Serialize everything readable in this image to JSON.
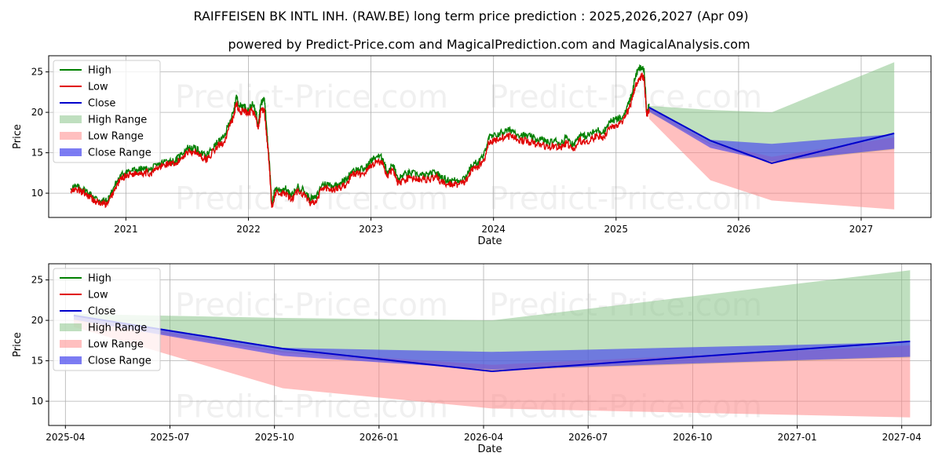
{
  "title": "RAIFFEISEN BK INTL INH. (RAW.BE) long term price prediction : 2025,2026,2027 (Apr 09)",
  "subtitle": "powered by Predict-Price.com and MagicalPrediction.com and MagicalAnalysis.com",
  "watermark": "Predict-Price.com",
  "colors": {
    "high": "#008000",
    "low": "#e00000",
    "close": "#0000cc",
    "high_range": "#7fbf7f",
    "low_range": "#ff8080",
    "close_range": "#4444ee",
    "grid": "#b0b0b0"
  },
  "chart_data": [
    {
      "type": "line",
      "panel": "top",
      "xlabel": "Date",
      "ylabel": "Price",
      "xlim": [
        2020.37,
        2027.57
      ],
      "ylim": [
        7,
        27
      ],
      "xticks": [
        {
          "v": 2021.0,
          "label": "2021"
        },
        {
          "v": 2022.0,
          "label": "2022"
        },
        {
          "v": 2023.0,
          "label": "2023"
        },
        {
          "v": 2024.0,
          "label": "2024"
        },
        {
          "v": 2025.0,
          "label": "2025"
        },
        {
          "v": 2026.0,
          "label": "2026"
        },
        {
          "v": 2027.0,
          "label": "2027"
        }
      ],
      "yticks": [
        10,
        15,
        20,
        25
      ],
      "legend": [
        "High",
        "Low",
        "Close",
        "High Range",
        "Low Range",
        "Close Range"
      ],
      "legend_position": "top-left",
      "history_low": [
        [
          2020.55,
          10.2
        ],
        [
          2020.6,
          10.4
        ],
        [
          2020.65,
          10.1
        ],
        [
          2020.7,
          9.6
        ],
        [
          2020.75,
          9.0
        ],
        [
          2020.8,
          8.7
        ],
        [
          2020.85,
          8.6
        ],
        [
          2020.9,
          10.2
        ],
        [
          2020.95,
          11.6
        ],
        [
          2021.0,
          12.2
        ],
        [
          2021.05,
          12.4
        ],
        [
          2021.1,
          12.5
        ],
        [
          2021.15,
          12.6
        ],
        [
          2021.2,
          12.4
        ],
        [
          2021.25,
          13.0
        ],
        [
          2021.3,
          13.4
        ],
        [
          2021.35,
          13.7
        ],
        [
          2021.4,
          13.4
        ],
        [
          2021.45,
          14.3
        ],
        [
          2021.5,
          15.1
        ],
        [
          2021.55,
          15.2
        ],
        [
          2021.6,
          14.8
        ],
        [
          2021.65,
          14.1
        ],
        [
          2021.7,
          14.9
        ],
        [
          2021.75,
          15.8
        ],
        [
          2021.8,
          16.3
        ],
        [
          2021.85,
          18.4
        ],
        [
          2021.88,
          19.4
        ],
        [
          2021.9,
          21.2
        ],
        [
          2021.93,
          20.0
        ],
        [
          2021.96,
          20.2
        ],
        [
          2022.0,
          19.7
        ],
        [
          2022.03,
          20.3
        ],
        [
          2022.06,
          19.5
        ],
        [
          2022.08,
          17.9
        ],
        [
          2022.1,
          20.2
        ],
        [
          2022.13,
          20.3
        ],
        [
          2022.15,
          17.0
        ],
        [
          2022.17,
          13.5
        ],
        [
          2022.19,
          8.2
        ],
        [
          2022.22,
          10.1
        ],
        [
          2022.26,
          9.8
        ],
        [
          2022.3,
          10.0
        ],
        [
          2022.35,
          9.1
        ],
        [
          2022.4,
          10.3
        ],
        [
          2022.45,
          9.9
        ],
        [
          2022.5,
          8.8
        ],
        [
          2022.55,
          8.8
        ],
        [
          2022.6,
          10.5
        ],
        [
          2022.65,
          10.6
        ],
        [
          2022.7,
          10.4
        ],
        [
          2022.75,
          10.7
        ],
        [
          2022.8,
          11.1
        ],
        [
          2022.85,
          12.4
        ],
        [
          2022.9,
          12.4
        ],
        [
          2022.95,
          12.5
        ],
        [
          2023.0,
          13.4
        ],
        [
          2023.05,
          14.0
        ],
        [
          2023.1,
          13.7
        ],
        [
          2023.13,
          12.0
        ],
        [
          2023.18,
          13.0
        ],
        [
          2023.22,
          11.1
        ],
        [
          2023.27,
          11.7
        ],
        [
          2023.32,
          11.9
        ],
        [
          2023.38,
          11.8
        ],
        [
          2023.43,
          11.7
        ],
        [
          2023.48,
          11.7
        ],
        [
          2023.53,
          12.0
        ],
        [
          2023.57,
          11.4
        ],
        [
          2023.62,
          11.1
        ],
        [
          2023.67,
          11.1
        ],
        [
          2023.72,
          11.1
        ],
        [
          2023.77,
          11.4
        ],
        [
          2023.82,
          12.8
        ],
        [
          2023.88,
          13.4
        ],
        [
          2023.92,
          14.0
        ],
        [
          2023.96,
          16.3
        ],
        [
          2024.0,
          16.4
        ],
        [
          2024.05,
          16.8
        ],
        [
          2024.1,
          17.0
        ],
        [
          2024.15,
          17.1
        ],
        [
          2024.2,
          16.6
        ],
        [
          2024.25,
          16.5
        ],
        [
          2024.3,
          16.3
        ],
        [
          2024.35,
          16.0
        ],
        [
          2024.4,
          16.0
        ],
        [
          2024.45,
          15.6
        ],
        [
          2024.5,
          15.9
        ],
        [
          2024.55,
          15.6
        ],
        [
          2024.6,
          16.3
        ],
        [
          2024.65,
          15.2
        ],
        [
          2024.7,
          16.5
        ],
        [
          2024.75,
          16.3
        ],
        [
          2024.8,
          16.7
        ],
        [
          2024.85,
          17.1
        ],
        [
          2024.9,
          16.9
        ],
        [
          2024.95,
          18.2
        ],
        [
          2025.0,
          18.4
        ],
        [
          2025.05,
          18.6
        ],
        [
          2025.1,
          20.3
        ],
        [
          2025.13,
          21.5
        ],
        [
          2025.16,
          23.5
        ],
        [
          2025.19,
          24.0
        ],
        [
          2025.21,
          24.6
        ],
        [
          2025.23,
          24.2
        ],
        [
          2025.25,
          19.5
        ],
        [
          2025.27,
          20.4
        ]
      ],
      "history_high": [
        [
          2020.55,
          10.6
        ],
        [
          2020.6,
          10.8
        ],
        [
          2020.65,
          10.5
        ],
        [
          2020.7,
          10.0
        ],
        [
          2020.75,
          9.4
        ],
        [
          2020.8,
          9.1
        ],
        [
          2020.85,
          9.0
        ],
        [
          2020.9,
          10.7
        ],
        [
          2020.95,
          12.0
        ],
        [
          2021.0,
          12.7
        ],
        [
          2021.05,
          12.8
        ],
        [
          2021.1,
          12.9
        ],
        [
          2021.15,
          13.0
        ],
        [
          2021.2,
          12.9
        ],
        [
          2021.25,
          13.4
        ],
        [
          2021.3,
          13.8
        ],
        [
          2021.35,
          14.1
        ],
        [
          2021.4,
          13.9
        ],
        [
          2021.45,
          14.8
        ],
        [
          2021.5,
          15.6
        ],
        [
          2021.55,
          15.6
        ],
        [
          2021.6,
          15.2
        ],
        [
          2021.65,
          14.6
        ],
        [
          2021.7,
          15.4
        ],
        [
          2021.75,
          16.3
        ],
        [
          2021.8,
          16.9
        ],
        [
          2021.85,
          19.0
        ],
        [
          2021.88,
          20.0
        ],
        [
          2021.9,
          22.0
        ],
        [
          2021.93,
          20.8
        ],
        [
          2021.96,
          20.8
        ],
        [
          2022.0,
          20.3
        ],
        [
          2022.03,
          21.0
        ],
        [
          2022.06,
          20.2
        ],
        [
          2022.08,
          18.6
        ],
        [
          2022.1,
          21.0
        ],
        [
          2022.13,
          21.8
        ],
        [
          2022.15,
          18.0
        ],
        [
          2022.17,
          14.0
        ],
        [
          2022.19,
          8.8
        ],
        [
          2022.22,
          10.6
        ],
        [
          2022.26,
          10.4
        ],
        [
          2022.3,
          10.6
        ],
        [
          2022.35,
          9.6
        ],
        [
          2022.4,
          10.8
        ],
        [
          2022.45,
          10.4
        ],
        [
          2022.5,
          9.3
        ],
        [
          2022.55,
          9.4
        ],
        [
          2022.6,
          11.1
        ],
        [
          2022.65,
          11.1
        ],
        [
          2022.7,
          10.9
        ],
        [
          2022.75,
          11.3
        ],
        [
          2022.8,
          11.7
        ],
        [
          2022.85,
          12.9
        ],
        [
          2022.9,
          12.9
        ],
        [
          2022.95,
          13.0
        ],
        [
          2023.0,
          14.0
        ],
        [
          2023.05,
          14.6
        ],
        [
          2023.1,
          14.3
        ],
        [
          2023.13,
          12.6
        ],
        [
          2023.18,
          13.6
        ],
        [
          2023.22,
          11.7
        ],
        [
          2023.27,
          12.3
        ],
        [
          2023.32,
          12.5
        ],
        [
          2023.38,
          12.3
        ],
        [
          2023.43,
          12.2
        ],
        [
          2023.48,
          12.3
        ],
        [
          2023.53,
          12.6
        ],
        [
          2023.57,
          12.0
        ],
        [
          2023.62,
          11.6
        ],
        [
          2023.67,
          11.6
        ],
        [
          2023.72,
          11.6
        ],
        [
          2023.77,
          12.0
        ],
        [
          2023.82,
          13.3
        ],
        [
          2023.88,
          14.0
        ],
        [
          2023.92,
          14.6
        ],
        [
          2023.96,
          16.9
        ],
        [
          2024.0,
          17.0
        ],
        [
          2024.05,
          17.4
        ],
        [
          2024.1,
          17.7
        ],
        [
          2024.15,
          17.8
        ],
        [
          2024.2,
          17.3
        ],
        [
          2024.25,
          17.1
        ],
        [
          2024.3,
          17.0
        ],
        [
          2024.35,
          16.6
        ],
        [
          2024.4,
          16.6
        ],
        [
          2024.45,
          16.2
        ],
        [
          2024.5,
          16.5
        ],
        [
          2024.55,
          16.2
        ],
        [
          2024.6,
          17.0
        ],
        [
          2024.65,
          15.9
        ],
        [
          2024.7,
          17.2
        ],
        [
          2024.75,
          17.0
        ],
        [
          2024.8,
          17.4
        ],
        [
          2024.85,
          17.8
        ],
        [
          2024.9,
          17.6
        ],
        [
          2024.95,
          18.9
        ],
        [
          2025.0,
          19.1
        ],
        [
          2025.05,
          19.3
        ],
        [
          2025.1,
          21.0
        ],
        [
          2025.13,
          22.3
        ],
        [
          2025.16,
          24.6
        ],
        [
          2025.19,
          25.4
        ],
        [
          2025.21,
          25.5
        ],
        [
          2025.23,
          25.0
        ],
        [
          2025.25,
          20.2
        ],
        [
          2025.27,
          21.0
        ]
      ],
      "prediction": {
        "x": [
          2025.27,
          2025.77,
          2026.27,
          2027.27
        ],
        "close": [
          20.6,
          16.5,
          13.7,
          17.4
        ],
        "high_range": {
          "upper": [
            20.8,
            20.3,
            20.0,
            26.2
          ],
          "lower": [
            20.0,
            16.0,
            13.8,
            15.4
          ]
        },
        "low_range": {
          "upper": [
            20.5,
            16.2,
            14.5,
            16.9
          ],
          "lower": [
            19.2,
            11.6,
            9.1,
            8.0
          ]
        },
        "close_range": {
          "upper": [
            20.7,
            16.6,
            16.1,
            17.3
          ],
          "lower": [
            20.1,
            15.6,
            13.9,
            15.5
          ]
        }
      }
    },
    {
      "type": "line",
      "panel": "bottom",
      "xlabel": "Date",
      "ylabel": "Price",
      "xlim": [
        2025.21,
        2027.32
      ],
      "ylim": [
        7,
        27
      ],
      "xticks": [
        {
          "v": 2025.25,
          "label": "2025-04"
        },
        {
          "v": 2025.5,
          "label": "2025-07"
        },
        {
          "v": 2025.75,
          "label": "2025-10"
        },
        {
          "v": 2026.0,
          "label": "2026-01"
        },
        {
          "v": 2026.25,
          "label": "2026-04"
        },
        {
          "v": 2026.5,
          "label": "2026-07"
        },
        {
          "v": 2026.75,
          "label": "2026-10"
        },
        {
          "v": 2027.0,
          "label": "2027-01"
        },
        {
          "v": 2027.25,
          "label": "2027-04"
        }
      ],
      "yticks": [
        10,
        15,
        20,
        25
      ],
      "legend": [
        "High",
        "Low",
        "Close",
        "High Range",
        "Low Range",
        "Close Range"
      ],
      "legend_position": "top-left"
    }
  ]
}
